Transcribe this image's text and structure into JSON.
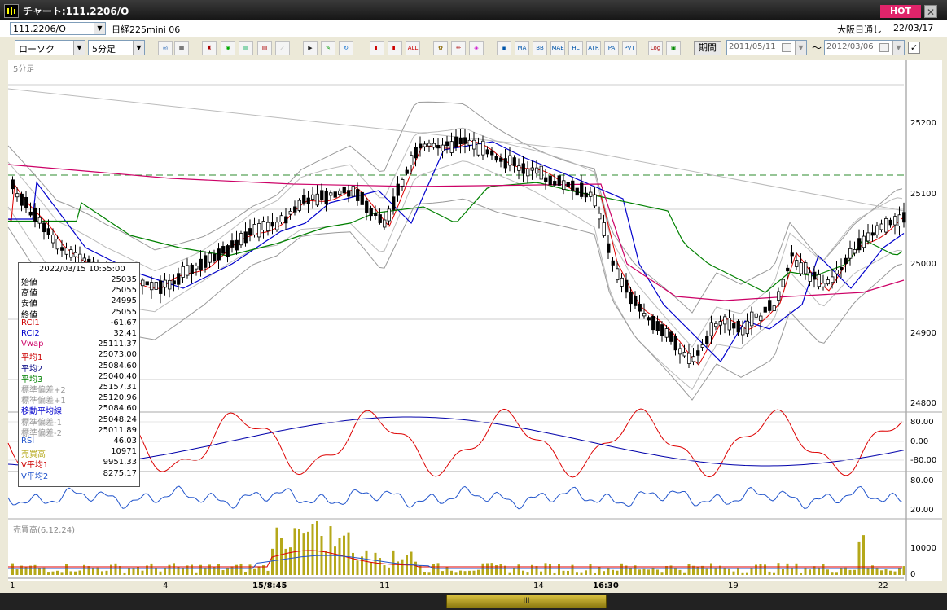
{
  "window": {
    "title": "チャート:111.2206/O",
    "hot_label": "HOT",
    "close_label": "✕"
  },
  "infobar": {
    "symbol": "111.2206/O",
    "symbol_name": "日経225mini 06",
    "market": "大阪日通し",
    "date": "22/03/17"
  },
  "toolbar": {
    "chart_type": "ローソク",
    "interval": "5分足",
    "buttons": [
      "search",
      "cursor",
      "compare",
      "zoom",
      "bar",
      "trend",
      "line",
      "pointer",
      "draw",
      "redo",
      "erase",
      "erase-all",
      "settings",
      "tools",
      "color",
      "indicator",
      "ma",
      "bb",
      "mae",
      "hl",
      "atr",
      "para",
      "pvt",
      "log",
      "save"
    ],
    "period_label": "期間",
    "date_from": "2011/05/11",
    "date_to": "2012/03/06",
    "tilde": "〜",
    "check": "✓"
  },
  "chart": {
    "interval_label": "5分足",
    "volume_label": "売買高(6,12,24)",
    "price_ticks": [
      "25200",
      "25100",
      "25000",
      "24900",
      "24800"
    ],
    "osc_ticks": [
      "80.00",
      "0.00",
      "-80.00"
    ],
    "rsi_ticks": [
      "80.00",
      "20.00"
    ],
    "vol_ticks": [
      "10000",
      "0"
    ],
    "x_labels": [
      "1",
      "4",
      "15/8:45",
      "11",
      "14",
      "16:30",
      "19",
      "22"
    ],
    "colors": {
      "up": "#ffffff",
      "down": "#000000",
      "ma_short": "#e00000",
      "ma_mid": "#0000cc",
      "ma_long": "#008000",
      "vwap": "#cc0066",
      "band": "#999999",
      "rsi": "#2255cc",
      "volume": "#b5a81a"
    }
  },
  "data_panel": {
    "datetime": "2022/03/15  10:55:00",
    "rows": [
      {
        "label": "始値",
        "value": "25035",
        "color": "#000000"
      },
      {
        "label": "高値",
        "value": "25055",
        "color": "#000000"
      },
      {
        "label": "安値",
        "value": "24995",
        "color": "#000000"
      },
      {
        "label": "終値",
        "value": "25055",
        "color": "#000000"
      },
      {
        "label": "RCI1",
        "value": "-61.67",
        "color": "#cc0000"
      },
      {
        "label": "RCI2",
        "value": "32.41",
        "color": "#0000cc"
      },
      {
        "label": "Vwap",
        "value": "25111.37",
        "color": "#cc0066"
      },
      {
        "label": "平均1",
        "value": "25073.00",
        "color": "#cc0000"
      },
      {
        "label": "平均2",
        "value": "25084.60",
        "color": "#000080"
      },
      {
        "label": "平均3",
        "value": "25040.40",
        "color": "#008000"
      },
      {
        "label": "標準偏差+2",
        "value": "25157.31",
        "color": "#999999"
      },
      {
        "label": "標準偏差+1",
        "value": "25120.96",
        "color": "#999999"
      },
      {
        "label": "移動平均線",
        "value": "25084.60",
        "color": "#0000cc"
      },
      {
        "label": "標準偏差-1",
        "value": "25048.24",
        "color": "#999999"
      },
      {
        "label": "標準偏差-2",
        "value": "25011.89",
        "color": "#999999"
      },
      {
        "label": "RSI",
        "value": "46.03",
        "color": "#2255cc"
      },
      {
        "label": "売買高",
        "value": "10971",
        "color": "#b5a81a"
      },
      {
        "label": "V平均1",
        "value": "9951.33",
        "color": "#cc0000"
      },
      {
        "label": "V平均2",
        "value": "8275.17",
        "color": "#2255cc"
      }
    ]
  },
  "scrollbar": {
    "thumb_label": "III"
  }
}
